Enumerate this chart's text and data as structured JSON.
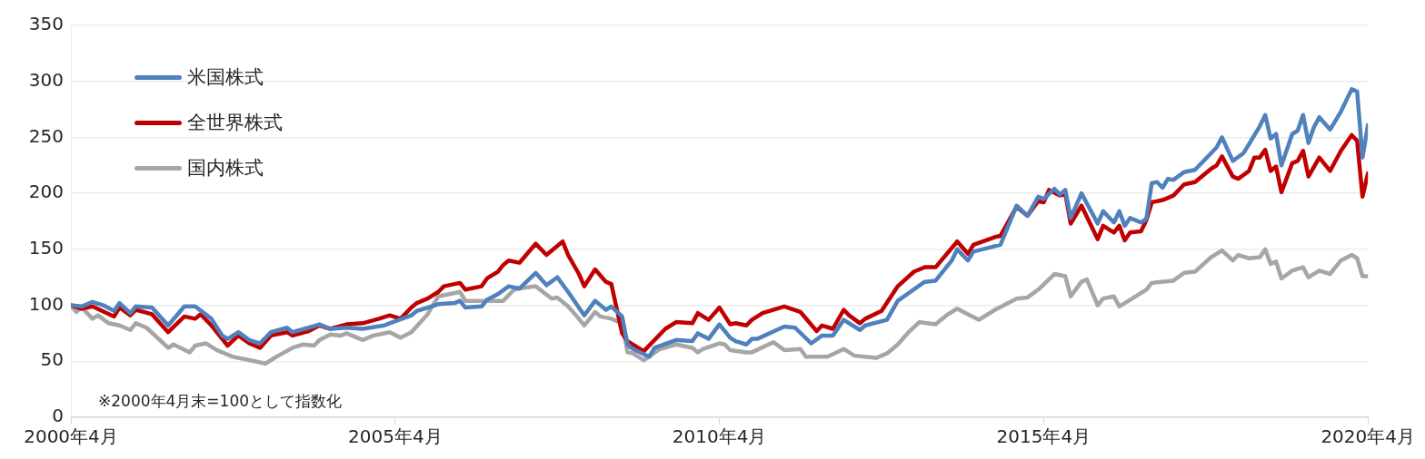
{
  "chart_data": {
    "type": "line",
    "xlim": [
      "2000-04",
      "2020-04"
    ],
    "xticks": [
      {
        "value": "2000-04",
        "label": "2000年4月"
      },
      {
        "value": "2005-04",
        "label": "2005年4月"
      },
      {
        "value": "2010-04",
        "label": "2010年4月"
      },
      {
        "value": "2015-04",
        "label": "2015年4月"
      },
      {
        "value": "2020-04",
        "label": "2020年4月"
      }
    ],
    "ylim": [
      0,
      350
    ],
    "yticks": [
      0,
      50,
      100,
      150,
      200,
      250,
      300,
      350
    ],
    "grid": "y",
    "legend": "top left",
    "line_style": "solid",
    "marker": "none",
    "annotations": [
      "※2000年4月末=100として指数化"
    ],
    "series": [
      {
        "name": "米国株式",
        "color": "#4f81bd",
        "x": [
          "2000-04",
          "2000-06",
          "2000-08",
          "2000-10",
          "2000-12",
          "2001-01",
          "2001-03",
          "2001-04",
          "2001-07",
          "2001-10",
          "2002-01",
          "2002-03",
          "2002-06",
          "2002-08",
          "2002-09",
          "2002-11",
          "2003-01",
          "2003-03",
          "2003-05",
          "2003-08",
          "2003-09",
          "2003-12",
          "2004-02",
          "2004-04",
          "2004-07",
          "2004-10",
          "2005-02",
          "2005-03",
          "2005-07",
          "2005-08",
          "2005-10",
          "2005-12",
          "2006-03",
          "2006-04",
          "2006-05",
          "2006-08",
          "2006-09",
          "2006-11",
          "2007-01",
          "2007-03",
          "2007-06",
          "2007-08",
          "2007-10",
          "2007-12",
          "2008-02",
          "2008-03",
          "2008-05",
          "2008-07",
          "2008-08",
          "2008-10",
          "2008-11",
          "2008-12",
          "2009-03",
          "2009-04",
          "2009-08",
          "2009-11",
          "2009-12",
          "2010-02",
          "2010-04",
          "2010-06",
          "2010-07",
          "2010-09",
          "2010-10",
          "2010-11",
          "2011-04",
          "2011-06",
          "2011-09",
          "2011-11",
          "2012-01",
          "2012-03",
          "2012-06",
          "2012-07",
          "2012-11",
          "2013-01",
          "2013-06",
          "2013-08",
          "2013-11",
          "2013-12",
          "2014-02",
          "2014-03",
          "2014-08",
          "2014-11",
          "2015-01",
          "2015-03",
          "2015-04",
          "2015-06",
          "2015-07",
          "2015-08",
          "2015-09",
          "2015-11",
          "2016-02",
          "2016-03",
          "2016-05",
          "2016-06",
          "2016-07",
          "2016-08",
          "2016-10",
          "2016-11",
          "2016-12",
          "2017-01",
          "2017-02",
          "2017-03",
          "2017-04",
          "2017-06",
          "2017-08",
          "2017-11",
          "2017-12",
          "2018-01",
          "2018-03",
          "2018-05",
          "2018-06",
          "2018-08",
          "2018-09",
          "2018-10",
          "2018-11",
          "2018-12",
          "2019-02",
          "2019-03",
          "2019-04",
          "2019-05",
          "2019-06",
          "2019-07",
          "2019-09",
          "2019-11",
          "2020-01",
          "2020-02",
          "2020-03",
          "2020-04"
        ],
        "values": [
          100,
          99,
          103,
          100,
          95,
          102,
          93,
          99,
          98,
          82,
          99,
          99,
          88,
          73,
          70,
          76,
          69,
          66,
          76,
          80,
          76,
          80,
          83,
          79,
          80,
          79,
          82,
          84,
          91,
          95,
          98,
          101,
          102,
          104,
          98,
          99,
          105,
          110,
          117,
          115,
          129,
          118,
          125,
          112,
          98,
          91,
          104,
          96,
          99,
          90,
          65,
          61,
          54,
          62,
          69,
          68,
          75,
          70,
          83,
          71,
          68,
          65,
          70,
          70,
          81,
          80,
          66,
          73,
          73,
          87,
          78,
          82,
          87,
          104,
          121,
          122,
          140,
          150,
          140,
          148,
          154,
          189,
          180,
          197,
          195,
          204,
          199,
          203,
          178,
          200,
          173,
          184,
          174,
          184,
          171,
          178,
          174,
          177,
          209,
          210,
          205,
          213,
          212,
          219,
          221,
          236,
          241,
          250,
          229,
          236,
          244,
          260,
          270,
          249,
          253,
          225,
          253,
          256,
          270,
          245,
          259,
          268,
          257,
          273,
          293,
          291,
          232,
          261
        ]
      },
      {
        "name": "全世界株式",
        "color": "#c00000",
        "x": [
          "2000-04",
          "2000-06",
          "2000-08",
          "2000-12",
          "2001-01",
          "2001-03",
          "2001-04",
          "2001-07",
          "2001-10",
          "2002-01",
          "2002-03",
          "2002-04",
          "2002-06",
          "2002-08",
          "2002-09",
          "2002-11",
          "2003-01",
          "2003-03",
          "2003-05",
          "2003-08",
          "2003-09",
          "2003-12",
          "2004-02",
          "2004-04",
          "2004-07",
          "2004-10",
          "2005-01",
          "2005-03",
          "2005-05",
          "2005-07",
          "2005-08",
          "2005-10",
          "2005-12",
          "2006-01",
          "2006-04",
          "2006-05",
          "2006-08",
          "2006-09",
          "2006-11",
          "2006-12",
          "2007-01",
          "2007-03",
          "2007-06",
          "2007-08",
          "2007-11",
          "2007-12",
          "2008-02",
          "2008-03",
          "2008-05",
          "2008-07",
          "2008-08",
          "2008-10",
          "2008-11",
          "2009-02",
          "2009-06",
          "2009-08",
          "2009-11",
          "2009-12",
          "2010-02",
          "2010-04",
          "2010-06",
          "2010-07",
          "2010-09",
          "2010-10",
          "2010-12",
          "2011-04",
          "2011-07",
          "2011-10",
          "2011-11",
          "2012-01",
          "2012-03",
          "2012-04",
          "2012-06",
          "2012-07",
          "2012-10",
          "2013-01",
          "2013-04",
          "2013-06",
          "2013-08",
          "2013-12",
          "2014-02",
          "2014-03",
          "2014-07",
          "2014-08",
          "2014-11",
          "2015-01",
          "2015-03",
          "2015-04",
          "2015-05",
          "2015-07",
          "2015-08",
          "2015-09",
          "2015-11",
          "2016-02",
          "2016-03",
          "2016-05",
          "2016-06",
          "2016-07",
          "2016-08",
          "2016-10",
          "2016-11",
          "2016-12",
          "2017-02",
          "2017-03",
          "2017-04",
          "2017-06",
          "2017-08",
          "2017-11",
          "2017-12",
          "2018-01",
          "2018-03",
          "2018-04",
          "2018-06",
          "2018-07",
          "2018-08",
          "2018-09",
          "2018-10",
          "2018-11",
          "2018-12",
          "2019-02",
          "2019-03",
          "2019-04",
          "2019-05",
          "2019-07",
          "2019-09",
          "2019-11",
          "2020-01",
          "2020-02",
          "2020-03",
          "2020-04"
        ],
        "values": [
          100,
          97,
          99,
          90,
          98,
          91,
          96,
          92,
          76,
          90,
          88,
          92,
          82,
          70,
          64,
          73,
          66,
          62,
          73,
          76,
          73,
          77,
          82,
          79,
          83,
          84,
          88,
          91,
          88,
          98,
          102,
          106,
          112,
          117,
          120,
          114,
          117,
          124,
          130,
          136,
          140,
          138,
          155,
          145,
          157,
          145,
          128,
          117,
          132,
          121,
          119,
          75,
          68,
          59,
          79,
          85,
          84,
          93,
          87,
          98,
          83,
          84,
          82,
          87,
          93,
          99,
          94,
          77,
          82,
          79,
          96,
          91,
          84,
          88,
          95,
          117,
          130,
          134,
          134,
          157,
          146,
          154,
          161,
          162,
          188,
          180,
          193,
          192,
          203,
          198,
          200,
          173,
          189,
          159,
          171,
          165,
          171,
          158,
          165,
          166,
          176,
          192,
          194,
          196,
          198,
          208,
          210,
          222,
          225,
          233,
          215,
          213,
          220,
          232,
          232,
          239,
          220,
          224,
          201,
          227,
          229,
          238,
          215,
          232,
          220,
          238,
          252,
          247,
          197,
          218
        ]
      },
      {
        "name": "国内株式",
        "color": "#a6a6a6",
        "x": [
          "2000-04",
          "2000-05",
          "2000-06",
          "2000-08",
          "2000-09",
          "2000-11",
          "2001-01",
          "2001-03",
          "2001-04",
          "2001-06",
          "2001-10",
          "2001-11",
          "2002-02",
          "2002-03",
          "2002-05",
          "2002-07",
          "2002-10",
          "2002-12",
          "2003-04",
          "2003-06",
          "2003-09",
          "2003-11",
          "2004-01",
          "2004-02",
          "2004-04",
          "2004-06",
          "2004-07",
          "2004-10",
          "2004-12",
          "2005-03",
          "2005-05",
          "2005-07",
          "2005-10",
          "2005-12",
          "2006-02",
          "2006-04",
          "2006-05",
          "2006-08",
          "2006-12",
          "2007-02",
          "2007-03",
          "2007-06",
          "2007-09",
          "2007-10",
          "2007-12",
          "2008-02",
          "2008-03",
          "2008-05",
          "2008-06",
          "2008-08",
          "2008-10",
          "2008-11",
          "2008-12",
          "2009-02",
          "2009-05",
          "2009-08",
          "2009-11",
          "2009-12",
          "2010-01",
          "2010-04",
          "2010-05",
          "2010-06",
          "2010-09",
          "2010-10",
          "2011-02",
          "2011-04",
          "2011-07",
          "2011-08",
          "2011-12",
          "2012-03",
          "2012-05",
          "2012-09",
          "2012-11",
          "2013-01",
          "2013-03",
          "2013-05",
          "2013-08",
          "2013-10",
          "2013-12",
          "2014-02",
          "2014-04",
          "2014-07",
          "2014-11",
          "2015-01",
          "2015-03",
          "2015-06",
          "2015-08",
          "2015-09",
          "2015-11",
          "2015-12",
          "2016-02",
          "2016-03",
          "2016-05",
          "2016-06",
          "2016-11",
          "2016-12",
          "2017-04",
          "2017-06",
          "2017-08",
          "2017-11",
          "2018-01",
          "2018-03",
          "2018-04",
          "2018-06",
          "2018-08",
          "2018-09",
          "2018-10",
          "2018-11",
          "2018-12",
          "2019-02",
          "2019-04",
          "2019-05",
          "2019-07",
          "2019-09",
          "2019-11",
          "2020-01",
          "2020-02",
          "2020-03",
          "2020-04"
        ],
        "values": [
          100,
          94,
          98,
          88,
          91,
          84,
          82,
          78,
          84,
          80,
          62,
          65,
          58,
          64,
          66,
          60,
          54,
          52,
          48,
          54,
          62,
          65,
          64,
          69,
          74,
          73,
          75,
          69,
          73,
          76,
          71,
          76,
          92,
          108,
          110,
          112,
          104,
          104,
          104,
          114,
          115,
          117,
          106,
          107,
          99,
          88,
          82,
          94,
          90,
          88,
          84,
          58,
          57,
          51,
          61,
          65,
          62,
          58,
          61,
          66,
          65,
          60,
          58,
          58,
          67,
          60,
          61,
          54,
          54,
          61,
          55,
          53,
          57,
          65,
          76,
          85,
          83,
          91,
          97,
          92,
          87,
          96,
          106,
          107,
          114,
          128,
          126,
          108,
          121,
          123,
          100,
          106,
          108,
          99,
          114,
          120,
          122,
          129,
          130,
          143,
          149,
          140,
          145,
          142,
          143,
          150,
          137,
          139,
          124,
          131,
          134,
          125,
          131,
          128,
          140,
          145,
          142,
          126,
          126
        ]
      }
    ]
  }
}
